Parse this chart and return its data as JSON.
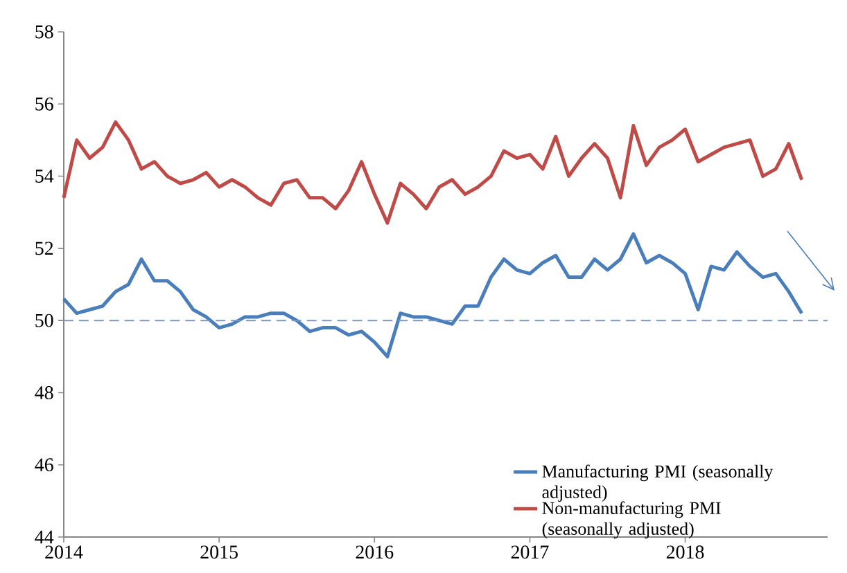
{
  "chart_data": {
    "type": "line",
    "x": [
      "2014-01",
      "2014-02",
      "2014-03",
      "2014-04",
      "2014-05",
      "2014-06",
      "2014-07",
      "2014-08",
      "2014-09",
      "2014-10",
      "2014-11",
      "2014-12",
      "2015-01",
      "2015-02",
      "2015-03",
      "2015-04",
      "2015-05",
      "2015-06",
      "2015-07",
      "2015-08",
      "2015-09",
      "2015-10",
      "2015-11",
      "2015-12",
      "2016-01",
      "2016-02",
      "2016-03",
      "2016-04",
      "2016-05",
      "2016-06",
      "2016-07",
      "2016-08",
      "2016-09",
      "2016-10",
      "2016-11",
      "2016-12",
      "2017-01",
      "2017-02",
      "2017-03",
      "2017-04",
      "2017-05",
      "2017-06",
      "2017-07",
      "2017-08",
      "2017-09",
      "2017-10",
      "2017-11",
      "2017-12",
      "2018-01",
      "2018-02",
      "2018-03",
      "2018-04",
      "2018-05",
      "2018-06",
      "2018-07",
      "2018-08",
      "2018-09",
      "2018-10"
    ],
    "series": [
      {
        "name": "Manufacturing PMI (seasonally adjusted)",
        "color": "#4a7ebb",
        "values": [
          50.6,
          50.2,
          50.3,
          50.4,
          50.8,
          51.0,
          51.7,
          51.1,
          51.1,
          50.8,
          50.3,
          50.1,
          49.8,
          49.9,
          50.1,
          50.1,
          50.2,
          50.2,
          50.0,
          49.7,
          49.8,
          49.8,
          49.6,
          49.7,
          49.4,
          49.0,
          50.2,
          50.1,
          50.1,
          50.0,
          49.9,
          50.4,
          50.4,
          51.2,
          51.7,
          51.4,
          51.3,
          51.6,
          51.8,
          51.2,
          51.2,
          51.7,
          51.4,
          51.7,
          52.4,
          51.6,
          51.8,
          51.6,
          51.3,
          50.3,
          51.5,
          51.4,
          51.9,
          51.5,
          51.2,
          51.3,
          50.8,
          50.2
        ]
      },
      {
        "name": "Non-manufacturing PMI (seasonally adjusted)",
        "color": "#be4b48",
        "values": [
          53.4,
          55.0,
          54.5,
          54.8,
          55.5,
          55.0,
          54.2,
          54.4,
          54.0,
          53.8,
          53.9,
          54.1,
          53.7,
          53.9,
          53.7,
          53.4,
          53.2,
          53.8,
          53.9,
          53.4,
          53.4,
          53.1,
          53.6,
          54.4,
          53.5,
          52.7,
          53.8,
          53.5,
          53.1,
          53.7,
          53.9,
          53.5,
          53.7,
          54.0,
          54.7,
          54.5,
          54.6,
          54.2,
          55.1,
          54.0,
          54.5,
          54.9,
          54.5,
          53.4,
          55.4,
          54.3,
          54.8,
          55.0,
          55.3,
          54.4,
          54.6,
          54.8,
          54.9,
          55.0,
          54.0,
          54.2,
          54.9,
          53.9
        ]
      }
    ],
    "xlim": [
      "2014-01",
      "2018-12"
    ],
    "xticks": [
      "2014",
      "2015",
      "2016",
      "2017",
      "2018"
    ],
    "ylim": [
      44,
      58
    ],
    "yticks": [
      44,
      46,
      48,
      50,
      52,
      54,
      56,
      58
    ],
    "ref_lines": [
      {
        "axis": "y",
        "value": 50,
        "color": "#7399c6",
        "line_style": "dashed"
      }
    ],
    "legend": "bottom right"
  }
}
